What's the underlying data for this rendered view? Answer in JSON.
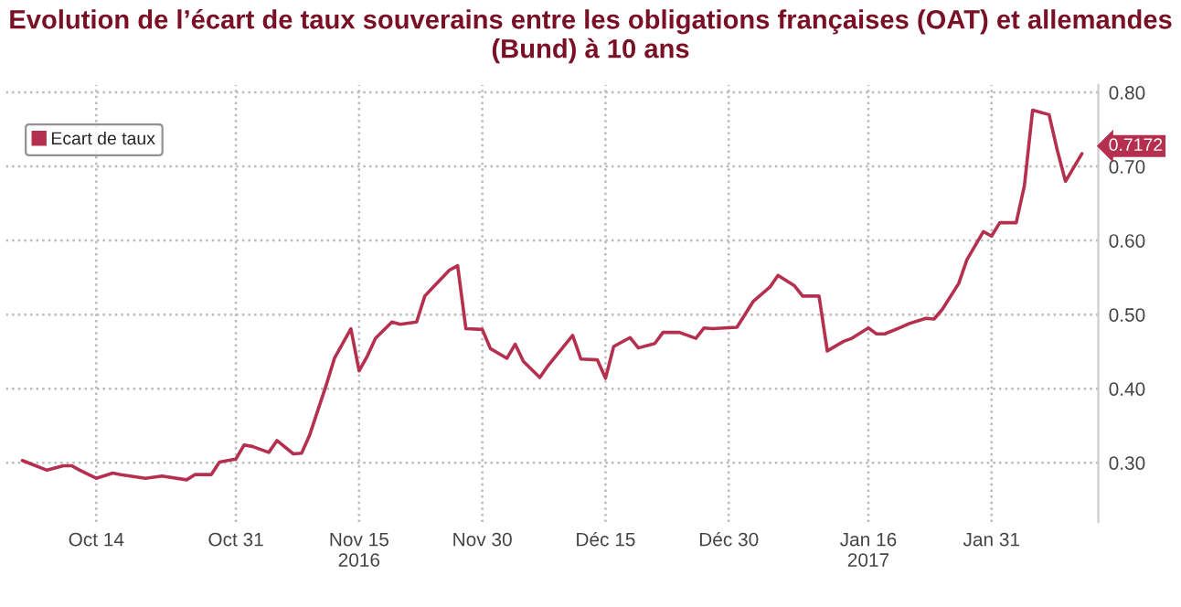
{
  "chart_data": {
    "type": "line",
    "title": "Evolution de l’écart de taux souverains entre les obligations françaises (OAT) et allemandes (Bund) à 10 ans",
    "x": [
      "2016-10-05",
      "2016-10-08",
      "2016-10-10",
      "2016-10-11",
      "2016-10-12",
      "2016-10-14",
      "2016-10-16",
      "2016-10-17",
      "2016-10-20",
      "2016-10-22",
      "2016-10-25",
      "2016-10-26",
      "2016-10-28",
      "2016-10-29",
      "2016-10-31",
      "2016-11-01",
      "2016-11-02",
      "2016-11-04",
      "2016-11-05",
      "2016-11-07",
      "2016-11-08",
      "2016-11-09",
      "2016-11-11",
      "2016-11-12",
      "2016-11-14",
      "2016-11-15",
      "2016-11-16",
      "2016-11-17",
      "2016-11-19",
      "2016-11-20",
      "2016-11-22",
      "2016-11-23",
      "2016-11-24",
      "2016-11-26",
      "2016-11-27",
      "2016-11-28",
      "2016-11-30",
      "2016-12-01",
      "2016-12-03",
      "2016-12-04",
      "2016-12-05",
      "2016-12-07",
      "2016-12-08",
      "2016-12-11",
      "2016-12-12",
      "2016-12-14",
      "2016-12-15",
      "2016-12-16",
      "2016-12-18",
      "2016-12-19",
      "2016-12-21",
      "2016-12-22",
      "2016-12-24",
      "2016-12-26",
      "2016-12-27",
      "2016-12-28",
      "2016-12-31",
      "2017-01-02",
      "2017-01-04",
      "2017-01-05",
      "2017-01-07",
      "2017-01-08",
      "2017-01-10",
      "2017-01-11",
      "2017-01-13",
      "2017-01-14",
      "2017-01-16",
      "2017-01-17",
      "2017-01-18",
      "2017-01-20",
      "2017-01-21",
      "2017-01-23",
      "2017-01-24",
      "2017-01-25",
      "2017-01-27",
      "2017-01-28",
      "2017-01-30",
      "2017-01-31",
      "2017-02-01",
      "2017-02-03",
      "2017-02-04",
      "2017-02-05",
      "2017-02-07",
      "2017-02-08",
      "2017-02-09",
      "2017-02-11"
    ],
    "series": [
      {
        "name": "Ecart de taux",
        "color": "#b5304f",
        "values": [
          0.303,
          0.29,
          0.296,
          0.296,
          0.29,
          0.279,
          0.286,
          0.284,
          0.279,
          0.282,
          0.277,
          0.284,
          0.284,
          0.301,
          0.305,
          0.324,
          0.322,
          0.314,
          0.33,
          0.312,
          0.313,
          0.338,
          0.405,
          0.441,
          0.481,
          0.424,
          0.444,
          0.468,
          0.49,
          0.487,
          0.49,
          0.525,
          0.537,
          0.56,
          0.566,
          0.481,
          0.48,
          0.454,
          0.441,
          0.46,
          0.437,
          0.415,
          0.431,
          0.472,
          0.44,
          0.439,
          0.414,
          0.457,
          0.469,
          0.455,
          0.461,
          0.476,
          0.476,
          0.468,
          0.482,
          0.481,
          0.483,
          0.518,
          0.537,
          0.553,
          0.539,
          0.525,
          0.525,
          0.451,
          0.464,
          0.468,
          0.482,
          0.474,
          0.474,
          0.483,
          0.488,
          0.495,
          0.494,
          0.507,
          0.542,
          0.574,
          0.612,
          0.606,
          0.624,
          0.624,
          0.674,
          0.776,
          0.77,
          0.722,
          0.68,
          0.7172
        ],
        "value_labels": [
          null,
          null,
          null,
          null,
          null,
          null,
          null,
          null,
          null,
          null,
          null,
          null,
          null,
          null,
          null,
          null,
          null,
          null,
          null,
          null,
          null,
          null,
          null,
          null,
          null,
          null,
          null,
          null,
          null,
          null,
          null,
          null,
          null,
          null,
          null,
          null,
          null,
          null,
          null,
          null,
          null,
          null,
          null,
          null,
          null,
          null,
          null,
          null,
          null,
          null,
          null,
          null,
          null,
          null,
          null,
          null,
          null,
          null,
          null,
          null,
          null,
          null,
          null,
          null,
          null,
          null,
          null,
          null,
          null,
          null,
          null,
          null,
          null,
          null,
          null,
          null,
          null,
          null,
          null,
          null,
          null,
          null,
          null,
          null,
          null,
          "0.7172"
        ]
      }
    ],
    "xlim": [
      "2016-10-03",
      "2017-02-13"
    ],
    "xticks": [
      {
        "value": "2016-10-14",
        "label": "Oct 14"
      },
      {
        "value": "2016-10-31",
        "label": "Oct 31"
      },
      {
        "value": "2016-11-15",
        "label": "Nov 15\n2016"
      },
      {
        "value": "2016-11-30",
        "label": "Nov 30"
      },
      {
        "value": "2016-12-15",
        "label": "Déc 15"
      },
      {
        "value": "2016-12-30",
        "label": "Déc 30"
      },
      {
        "value": "2017-01-16",
        "label": "Jan 16\n2017"
      },
      {
        "value": "2017-01-31",
        "label": "Jan 31"
      }
    ],
    "ylim": [
      0.22,
      0.81
    ],
    "yticks": [
      {
        "value": 0.3,
        "label": "0.30"
      },
      {
        "value": 0.4,
        "label": "0.40"
      },
      {
        "value": 0.5,
        "label": "0.50"
      },
      {
        "value": 0.6,
        "label": "0.60"
      },
      {
        "value": 0.7,
        "label": "0.70"
      },
      {
        "value": 0.8,
        "label": "0.80"
      }
    ],
    "grid": true,
    "legend": "top left",
    "marker": "none",
    "line_style": "solid"
  }
}
